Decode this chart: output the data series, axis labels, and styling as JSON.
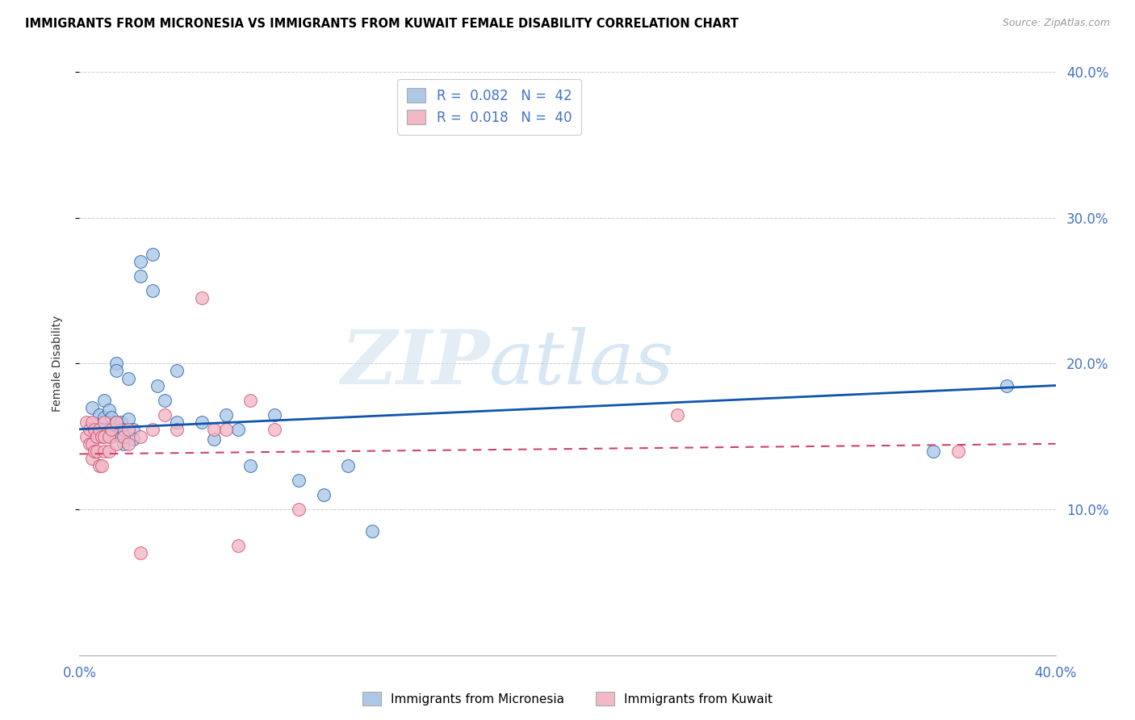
{
  "title": "IMMIGRANTS FROM MICRONESIA VS IMMIGRANTS FROM KUWAIT FEMALE DISABILITY CORRELATION CHART",
  "source": "Source: ZipAtlas.com",
  "ylabel": "Female Disability",
  "xlim": [
    0.0,
    0.4
  ],
  "ylim": [
    0.0,
    0.4
  ],
  "yticks": [
    0.1,
    0.2,
    0.3,
    0.4
  ],
  "ytick_labels": [
    "10.0%",
    "20.0%",
    "30.0%",
    "40.0%"
  ],
  "micronesia_color": "#adc8e6",
  "kuwait_color": "#f2b8c6",
  "line_blue": "#1155aa",
  "line_pink": "#cc4466",
  "blue_x": [
    0.005,
    0.008,
    0.008,
    0.01,
    0.01,
    0.01,
    0.012,
    0.012,
    0.013,
    0.013,
    0.015,
    0.015,
    0.015,
    0.017,
    0.017,
    0.017,
    0.018,
    0.018,
    0.02,
    0.02,
    0.022,
    0.022,
    0.025,
    0.025,
    0.03,
    0.03,
    0.032,
    0.035,
    0.04,
    0.04,
    0.05,
    0.055,
    0.06,
    0.065,
    0.07,
    0.08,
    0.09,
    0.1,
    0.11,
    0.12,
    0.35,
    0.38
  ],
  "blue_y": [
    0.17,
    0.165,
    0.155,
    0.175,
    0.163,
    0.155,
    0.168,
    0.155,
    0.163,
    0.15,
    0.2,
    0.195,
    0.16,
    0.16,
    0.155,
    0.15,
    0.155,
    0.145,
    0.19,
    0.162,
    0.155,
    0.148,
    0.27,
    0.26,
    0.275,
    0.25,
    0.185,
    0.175,
    0.195,
    0.16,
    0.16,
    0.148,
    0.165,
    0.155,
    0.13,
    0.165,
    0.12,
    0.11,
    0.13,
    0.085,
    0.14,
    0.185
  ],
  "pink_x": [
    0.003,
    0.003,
    0.004,
    0.004,
    0.005,
    0.005,
    0.005,
    0.006,
    0.006,
    0.007,
    0.007,
    0.008,
    0.008,
    0.009,
    0.009,
    0.01,
    0.01,
    0.01,
    0.012,
    0.012,
    0.013,
    0.015,
    0.015,
    0.018,
    0.02,
    0.02,
    0.025,
    0.025,
    0.03,
    0.035,
    0.04,
    0.05,
    0.055,
    0.06,
    0.065,
    0.07,
    0.08,
    0.09,
    0.245,
    0.36
  ],
  "pink_y": [
    0.16,
    0.15,
    0.155,
    0.145,
    0.16,
    0.145,
    0.135,
    0.155,
    0.14,
    0.15,
    0.14,
    0.155,
    0.13,
    0.15,
    0.13,
    0.16,
    0.15,
    0.14,
    0.15,
    0.14,
    0.155,
    0.16,
    0.145,
    0.15,
    0.155,
    0.145,
    0.15,
    0.07,
    0.155,
    0.165,
    0.155,
    0.245,
    0.155,
    0.155,
    0.075,
    0.175,
    0.155,
    0.1,
    0.165,
    0.14
  ],
  "legend_r1": "R = 0.082",
  "legend_n1": "N = 42",
  "legend_r2": "R = 0.018",
  "legend_n2": "N = 40"
}
